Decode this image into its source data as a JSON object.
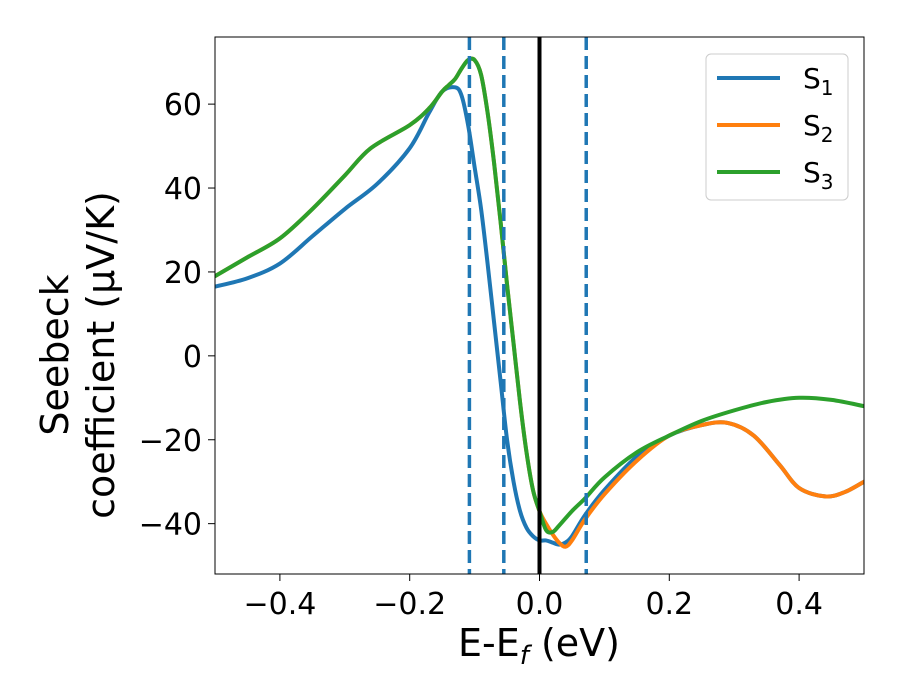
{
  "chart_data": {
    "type": "line",
    "xlabel": {
      "main": "E-E",
      "sub": "f",
      "unit": " (eV)"
    },
    "ylabel": {
      "line1": "Seebeck",
      "line2": "coefficient  (μV/K)"
    },
    "xlim": [
      -0.5,
      0.5
    ],
    "ylim": [
      -52,
      76
    ],
    "xticks": [
      -0.4,
      -0.2,
      0.0,
      0.2,
      0.4
    ],
    "xtick_labels": [
      "−0.4",
      "−0.2",
      "0.0",
      "0.2",
      "0.4"
    ],
    "yticks": [
      -40,
      -20,
      0,
      20,
      40,
      60
    ],
    "ytick_labels": [
      "−40",
      "−20",
      "0",
      "20",
      "40",
      "60"
    ],
    "grid": false,
    "legend_position": "top-right",
    "vertical_lines": [
      {
        "x": -0.108,
        "style": "dashed",
        "color": "#1f77b4"
      },
      {
        "x": -0.055,
        "style": "dashed",
        "color": "#1f77b4"
      },
      {
        "x": 0.0,
        "style": "solid",
        "color": "#000000"
      },
      {
        "x": 0.072,
        "style": "dashed",
        "color": "#1f77b4"
      }
    ],
    "series": [
      {
        "name": "S",
        "subscript": "1",
        "color": "#1f77b4",
        "x": [
          -0.5,
          -0.45,
          -0.4,
          -0.35,
          -0.3,
          -0.25,
          -0.2,
          -0.17,
          -0.15,
          -0.13,
          -0.12,
          -0.11,
          -0.1,
          -0.09,
          -0.08,
          -0.07,
          -0.06,
          -0.05,
          -0.04,
          -0.03,
          -0.02,
          -0.01,
          0.0,
          0.01,
          0.02,
          0.03,
          0.04,
          0.05,
          0.07,
          0.1,
          0.15,
          0.2,
          0.25,
          0.29,
          0.33,
          0.37,
          0.4,
          0.44,
          0.47,
          0.5
        ],
        "y": [
          16.5,
          18.5,
          22,
          28.5,
          35,
          41,
          49.5,
          58,
          63,
          64,
          62,
          55,
          45,
          35,
          22,
          8,
          -6,
          -20,
          -30,
          -37,
          -41,
          -43,
          -44,
          -44,
          -44.5,
          -45,
          -44.5,
          -43,
          -38,
          -32,
          -24,
          -19,
          -16.5,
          -16,
          -19,
          -26,
          -31.5,
          -33.5,
          -32.5,
          -30
        ]
      },
      {
        "name": "S",
        "subscript": "2",
        "color": "#ff7f0e",
        "x": [
          -0.5,
          -0.45,
          -0.4,
          -0.35,
          -0.3,
          -0.26,
          -0.2,
          -0.17,
          -0.15,
          -0.14,
          -0.13,
          -0.12,
          -0.11,
          -0.1,
          -0.09,
          -0.08,
          -0.07,
          -0.06,
          -0.05,
          -0.04,
          -0.03,
          -0.02,
          -0.01,
          0.0,
          0.01,
          0.02,
          0.03,
          0.04,
          0.05,
          0.07,
          0.1,
          0.15,
          0.2,
          0.25,
          0.29,
          0.33,
          0.37,
          0.4,
          0.44,
          0.47,
          0.5
        ],
        "y": [
          19,
          23.5,
          28,
          35,
          43,
          49.5,
          55,
          59,
          63,
          64.5,
          66,
          68.5,
          70.5,
          70.5,
          67,
          58,
          46,
          32,
          17,
          3,
          -11,
          -23,
          -32,
          -37,
          -40,
          -42.5,
          -44.5,
          -45.5,
          -44,
          -39,
          -33,
          -25,
          -19,
          -16.5,
          -16,
          -19,
          -26,
          -31.5,
          -33.5,
          -32.5,
          -30
        ]
      },
      {
        "name": "S",
        "subscript": "3",
        "color": "#2ca02c",
        "x": [
          -0.5,
          -0.45,
          -0.4,
          -0.35,
          -0.3,
          -0.26,
          -0.2,
          -0.17,
          -0.15,
          -0.14,
          -0.13,
          -0.12,
          -0.11,
          -0.1,
          -0.09,
          -0.08,
          -0.07,
          -0.06,
          -0.05,
          -0.04,
          -0.03,
          -0.02,
          -0.01,
          0.0,
          0.01,
          0.02,
          0.03,
          0.05,
          0.07,
          0.1,
          0.15,
          0.2,
          0.25,
          0.3,
          0.35,
          0.4,
          0.45,
          0.5
        ],
        "y": [
          19,
          23.5,
          28,
          35,
          43,
          49.5,
          55,
          59,
          63,
          64.5,
          66,
          68.5,
          70.5,
          70.5,
          67,
          58,
          46,
          32,
          17,
          3,
          -11,
          -23,
          -32,
          -37,
          -41.5,
          -42,
          -40.5,
          -37,
          -34,
          -29,
          -23,
          -19,
          -15.5,
          -13,
          -11,
          -10,
          -10.5,
          -12
        ]
      }
    ]
  }
}
